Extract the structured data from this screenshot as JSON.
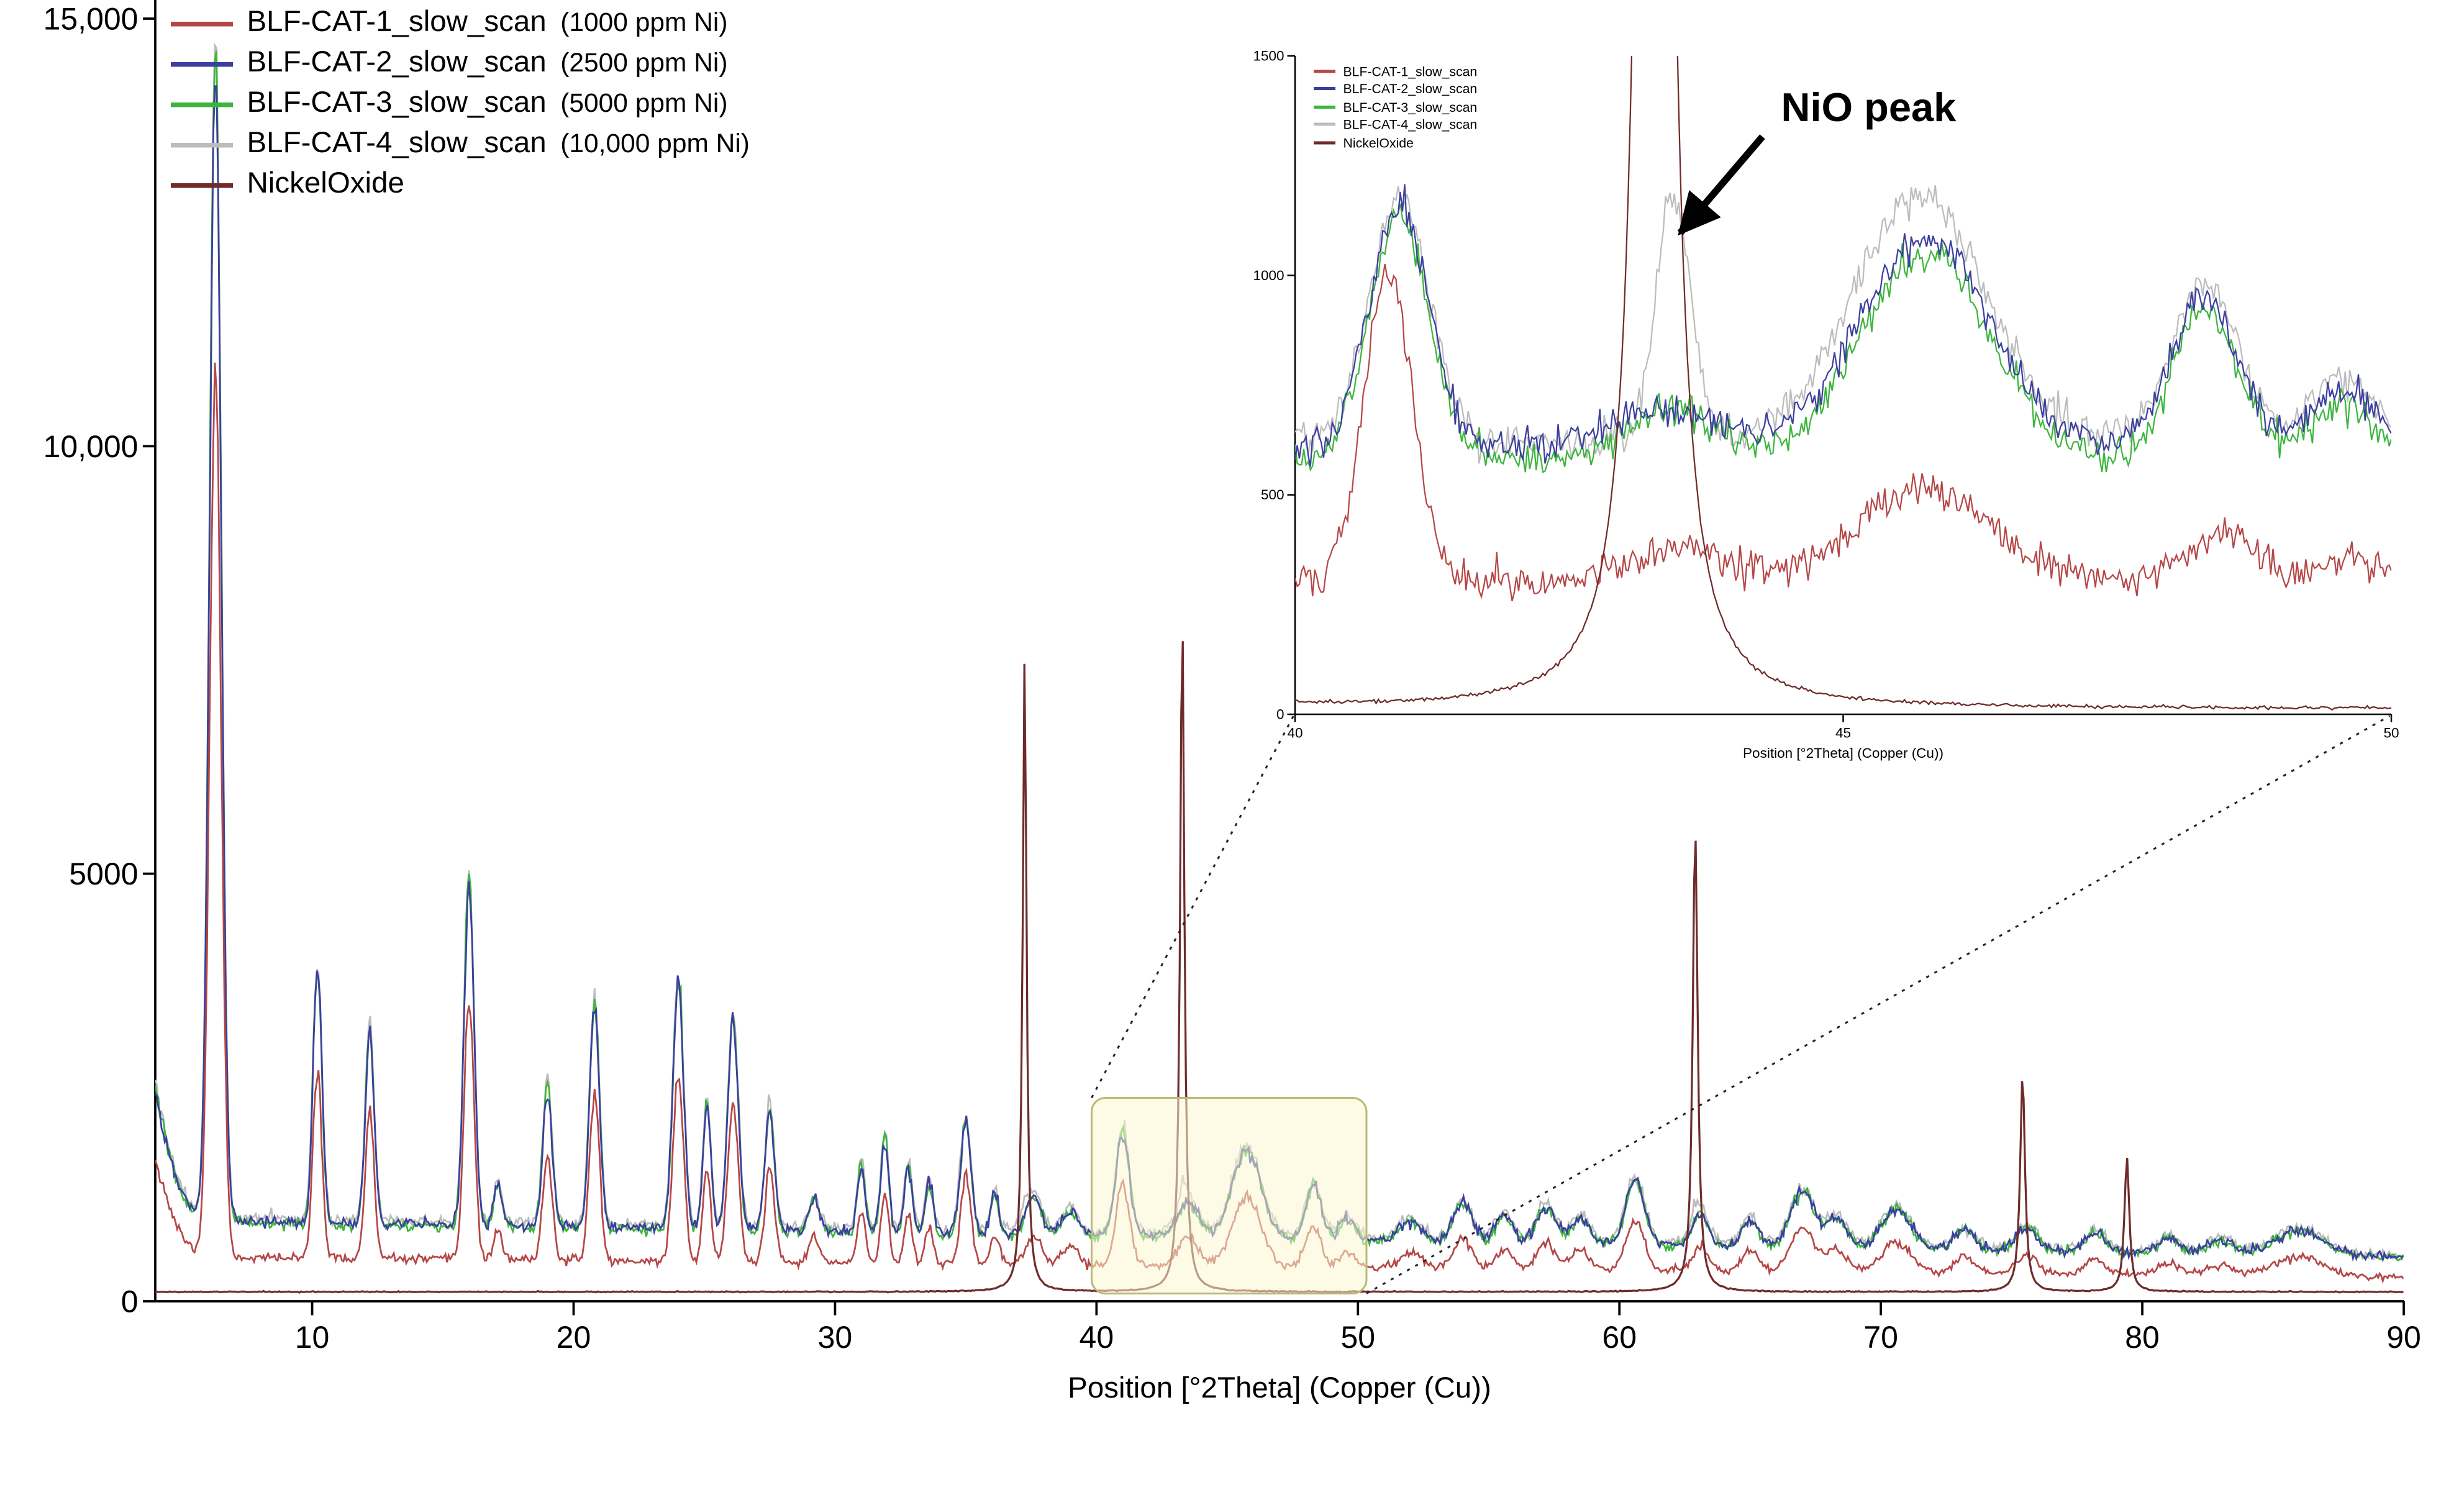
{
  "chart_data": {
    "type": "line",
    "title": "",
    "xlabel": "Position [°2Theta] (Copper (Cu))",
    "ylabel": "",
    "main": {
      "xlim": [
        4,
        90
      ],
      "ylim": [
        0,
        15500
      ],
      "xticks": [
        10,
        20,
        30,
        40,
        50,
        60,
        70,
        80,
        90
      ],
      "yticks": [
        0,
        5000,
        10000,
        15000
      ],
      "ytick_labels": [
        "0",
        "5000",
        "10,000",
        "15,000"
      ],
      "highlight_region_x": [
        40.5,
        49.8
      ],
      "highlight_color": "#fbf8cf"
    },
    "inset": {
      "xlim": [
        40,
        50
      ],
      "ylim": [
        0,
        1500
      ],
      "xticks": [
        40,
        45,
        50
      ],
      "yticks": [
        0,
        500,
        1000,
        1500
      ],
      "ytick_labels": [
        "0",
        "500",
        "1000",
        "1500"
      ],
      "xlabel": "Position [°2Theta] (Copper (Cu))",
      "annotation": "NiO peak"
    },
    "blf_peaks": [
      [
        3.0,
        2600,
        1.0
      ],
      [
        6.3,
        13800,
        0.22
      ],
      [
        10.2,
        3000,
        0.17
      ],
      [
        12.2,
        2300,
        0.17
      ],
      [
        16.0,
        4100,
        0.19
      ],
      [
        17.1,
        500,
        0.15
      ],
      [
        19.0,
        1650,
        0.18
      ],
      [
        20.8,
        2650,
        0.19
      ],
      [
        24.0,
        2950,
        0.2
      ],
      [
        25.1,
        1500,
        0.15
      ],
      [
        26.1,
        2500,
        0.2
      ],
      [
        27.5,
        1450,
        0.18
      ],
      [
        29.2,
        400,
        0.2
      ],
      [
        31.0,
        800,
        0.15
      ],
      [
        31.9,
        1100,
        0.15
      ],
      [
        32.8,
        800,
        0.15
      ],
      [
        33.6,
        600,
        0.15
      ],
      [
        35.0,
        1300,
        0.2
      ],
      [
        36.1,
        500,
        0.15
      ],
      [
        37.6,
        450,
        0.3
      ],
      [
        39.0,
        300,
        0.3
      ],
      [
        41.0,
        1250,
        0.26
      ],
      [
        43.5,
        420,
        0.4
      ],
      [
        45.75,
        1050,
        0.55
      ],
      [
        48.3,
        650,
        0.3
      ],
      [
        49.6,
        250,
        0.3
      ],
      [
        52.0,
        250,
        0.4
      ],
      [
        54.0,
        480,
        0.35
      ],
      [
        55.6,
        330,
        0.3
      ],
      [
        57.2,
        430,
        0.35
      ],
      [
        58.5,
        300,
        0.35
      ],
      [
        60.6,
        780,
        0.35
      ],
      [
        63.1,
        380,
        0.3
      ],
      [
        65.0,
        330,
        0.3
      ],
      [
        67.0,
        680,
        0.45
      ],
      [
        68.3,
        350,
        0.4
      ],
      [
        70.6,
        480,
        0.55
      ],
      [
        73.2,
        240,
        0.4
      ],
      [
        75.6,
        280,
        0.4
      ],
      [
        78.2,
        230,
        0.4
      ],
      [
        81.0,
        180,
        0.4
      ],
      [
        83.0,
        160,
        0.5
      ],
      [
        86.0,
        300,
        0.9
      ]
    ],
    "nio_peaks_main": [
      [
        37.25,
        7450,
        0.085
      ],
      [
        43.28,
        7950,
        0.095
      ],
      [
        62.9,
        5450,
        0.11
      ],
      [
        75.42,
        2550,
        0.11
      ],
      [
        79.41,
        1580,
        0.11
      ]
    ],
    "series": [
      {
        "id": "blf-cat-1",
        "label": "BLF-CAT-1_slow_scan",
        "ppm": "(1000 ppm Ni)",
        "color": "#b54747",
        "main": {
          "baseline": 520,
          "scale": 0.75,
          "noise": 1.1
        },
        "inset": {
          "baseline": 305,
          "noise": 20,
          "peaks": [
            [
              40.85,
              700,
              0.22
            ],
            [
              43.5,
              70,
              0.45
            ],
            [
              45.75,
              215,
              0.6
            ],
            [
              48.45,
              115,
              0.3
            ],
            [
              49.6,
              60,
              0.25
            ]
          ]
        }
      },
      {
        "id": "blf-cat-2",
        "label": "BLF-CAT-2_slow_scan",
        "ppm": "(2500 ppm Ni)",
        "color": "#3b3f9e",
        "main": {
          "baseline": 950,
          "scale": 0.97,
          "noise": 1.1
        },
        "inset": {
          "baseline": 605,
          "noise": 20,
          "peaks": [
            [
              40.95,
              555,
              0.27
            ],
            [
              43.4,
              90,
              0.5
            ],
            [
              45.75,
              480,
              0.6
            ],
            [
              48.3,
              350,
              0.3
            ],
            [
              49.55,
              130,
              0.3
            ]
          ]
        }
      },
      {
        "id": "blf-cat-3",
        "label": "BLF-CAT-3_slow_scan",
        "ppm": "(5000 ppm Ni)",
        "color": "#3cb53c",
        "main": {
          "baseline": 930,
          "scale": 1.0,
          "noise": 1.1
        },
        "inset": {
          "baseline": 580,
          "noise": 20,
          "peaks": [
            [
              40.95,
              560,
              0.27
            ],
            [
              43.45,
              120,
              0.4
            ],
            [
              45.75,
              470,
              0.6
            ],
            [
              48.3,
              340,
              0.3
            ],
            [
              49.55,
              125,
              0.3
            ]
          ]
        }
      },
      {
        "id": "blf-cat-4",
        "label": "BLF-CAT-4_slow_scan",
        "ppm": "(10,000 ppm Ni)",
        "color": "#bcbcbc",
        "main": {
          "baseline": 990,
          "scale": 1.0,
          "noise": 1.1,
          "extra": [
            [
              43.28,
              300,
              0.1
            ],
            [
              37.25,
              150,
              0.1
            ],
            [
              62.9,
              170,
              0.1
            ]
          ]
        },
        "inset": {
          "baseline": 625,
          "noise": 20,
          "peaks": [
            [
              40.95,
              555,
              0.27
            ],
            [
              43.45,
              560,
              0.16
            ],
            [
              45.7,
              560,
              0.6
            ],
            [
              48.3,
              360,
              0.3
            ],
            [
              49.55,
              140,
              0.3
            ]
          ]
        }
      },
      {
        "id": "nickel-oxide",
        "label": "NickelOxide",
        "ppm": "",
        "color": "#6f2b2b",
        "ref": true,
        "main": {
          "baseline": 110,
          "noise": 3
        },
        "inset": {
          "baseline": 12
        }
      }
    ]
  }
}
